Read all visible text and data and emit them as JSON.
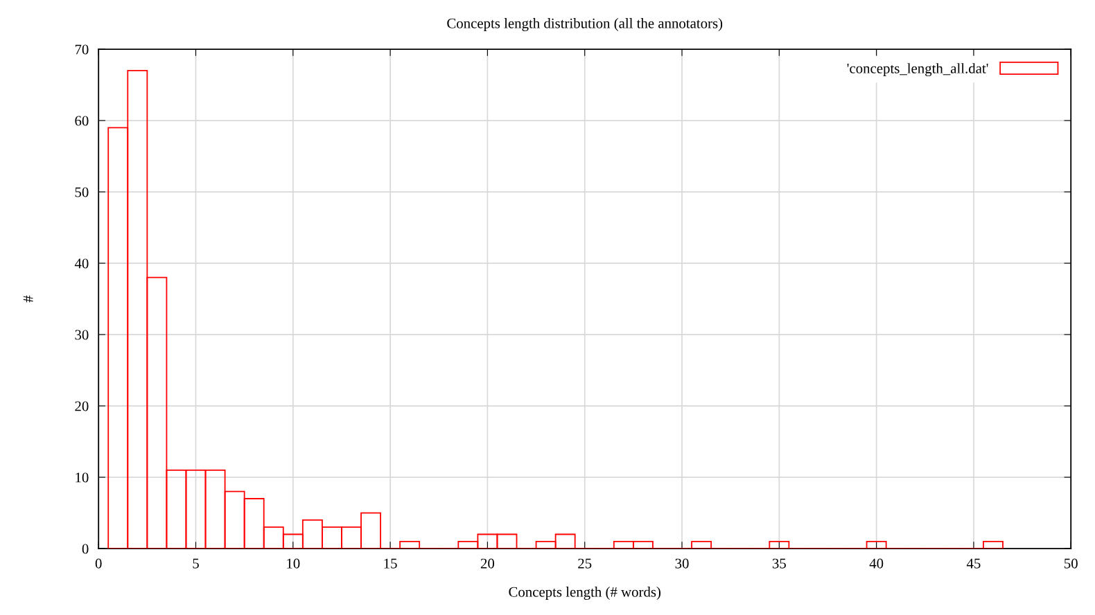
{
  "chart_data": {
    "type": "histogram",
    "title": "Concepts length distribution (all the annotators)",
    "xlabel": "Concepts length (# words)",
    "ylabel": "#",
    "bins": [
      0.5,
      1.5,
      2.5,
      3.5,
      4.5,
      5.5,
      6.5,
      7.5,
      8.5,
      9.5,
      10.5,
      11.5,
      12.5,
      13.5,
      14.5,
      15.5,
      16.5,
      17.5,
      18.5,
      19.5,
      20.5,
      21.5,
      22.5,
      23.5,
      24.5,
      25.5,
      26.5,
      27.5,
      28.5,
      29.5,
      30.5,
      31.5,
      32.5,
      33.5,
      34.5,
      35.5,
      36.5,
      37.5,
      38.5,
      39.5,
      40.5,
      41.5,
      42.5,
      43.5,
      44.5,
      45.5,
      46.5
    ],
    "series": [
      {
        "name": "'concepts_length_all.dat'",
        "color": "#ff0000",
        "values": [
          59,
          67,
          38,
          11,
          11,
          11,
          8,
          7,
          3,
          2,
          4,
          3,
          3,
          5,
          0,
          1,
          0,
          0,
          1,
          2,
          2,
          0,
          1,
          2,
          0,
          0,
          1,
          1,
          0,
          0,
          1,
          0,
          0,
          0,
          1,
          0,
          0,
          0,
          0,
          1,
          0,
          0,
          0,
          0,
          0,
          1
        ]
      }
    ],
    "xlim": [
      0,
      50
    ],
    "xticks": [
      0,
      5,
      10,
      15,
      20,
      25,
      30,
      35,
      40,
      45,
      50
    ],
    "ylim": [
      0,
      70
    ],
    "yticks": [
      0,
      10,
      20,
      30,
      40,
      50,
      60,
      70
    ],
    "grid": true,
    "legend": "top right"
  }
}
